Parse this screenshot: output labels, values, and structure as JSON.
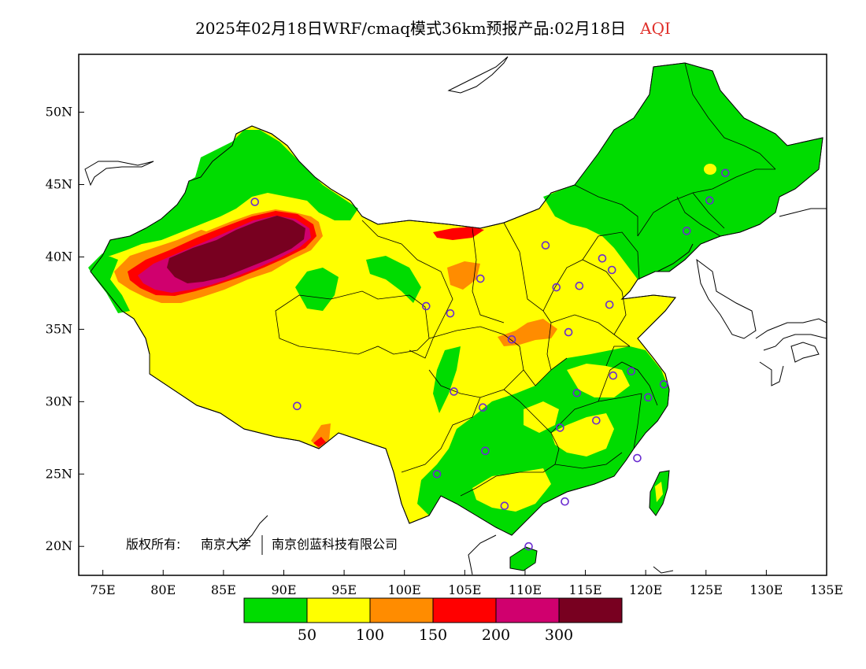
{
  "title": {
    "main": "2025年02月18日WRF/cmaq模式36km预报产品:02月18日",
    "variable": "AQI"
  },
  "map": {
    "lon_labels": [
      "75E",
      "80E",
      "85E",
      "90E",
      "95E",
      "100E",
      "105E",
      "110E",
      "115E",
      "120E",
      "125E",
      "130E",
      "135E"
    ],
    "lat_labels": [
      "20N",
      "25N",
      "30N",
      "35N",
      "40N",
      "45N",
      "50N"
    ],
    "lon_range": [
      73,
      135
    ],
    "lat_range": [
      18,
      54
    ]
  },
  "copyright": {
    "label": "版权所有:",
    "owner1": "南京大学",
    "owner2": "南京创蓝科技有限公司"
  },
  "colorbar": {
    "bins": [
      {
        "color": "#00dc00"
      },
      {
        "color": "#ffff00"
      },
      {
        "color": "#ff8c00"
      },
      {
        "color": "#ff0000"
      },
      {
        "color": "#d0006e"
      },
      {
        "color": "#780020"
      }
    ],
    "labels": [
      "50",
      "100",
      "150",
      "200",
      "300"
    ]
  },
  "stations": [
    {
      "lon": 87.6,
      "lat": 43.8
    },
    {
      "lon": 91.1,
      "lat": 29.7
    },
    {
      "lon": 101.8,
      "lat": 36.6
    },
    {
      "lon": 103.8,
      "lat": 36.1
    },
    {
      "lon": 106.3,
      "lat": 38.5
    },
    {
      "lon": 111.7,
      "lat": 40.8
    },
    {
      "lon": 112.6,
      "lat": 37.9
    },
    {
      "lon": 114.5,
      "lat": 38.0
    },
    {
      "lon": 116.4,
      "lat": 39.9
    },
    {
      "lon": 117.2,
      "lat": 39.1
    },
    {
      "lon": 117.0,
      "lat": 36.7
    },
    {
      "lon": 113.6,
      "lat": 34.8
    },
    {
      "lon": 108.9,
      "lat": 34.3
    },
    {
      "lon": 104.1,
      "lat": 30.7
    },
    {
      "lon": 106.5,
      "lat": 29.6
    },
    {
      "lon": 106.7,
      "lat": 26.6
    },
    {
      "lon": 102.7,
      "lat": 25.0
    },
    {
      "lon": 108.3,
      "lat": 22.8
    },
    {
      "lon": 113.3,
      "lat": 23.1
    },
    {
      "lon": 110.3,
      "lat": 20.0
    },
    {
      "lon": 112.9,
      "lat": 28.2
    },
    {
      "lon": 115.9,
      "lat": 28.7
    },
    {
      "lon": 114.3,
      "lat": 30.6
    },
    {
      "lon": 117.3,
      "lat": 31.8
    },
    {
      "lon": 118.8,
      "lat": 32.1
    },
    {
      "lon": 120.2,
      "lat": 30.3
    },
    {
      "lon": 121.5,
      "lat": 31.2
    },
    {
      "lon": 119.3,
      "lat": 26.1
    },
    {
      "lon": 123.4,
      "lat": 41.8
    },
    {
      "lon": 125.3,
      "lat": 43.9
    },
    {
      "lon": 126.6,
      "lat": 45.8
    }
  ]
}
